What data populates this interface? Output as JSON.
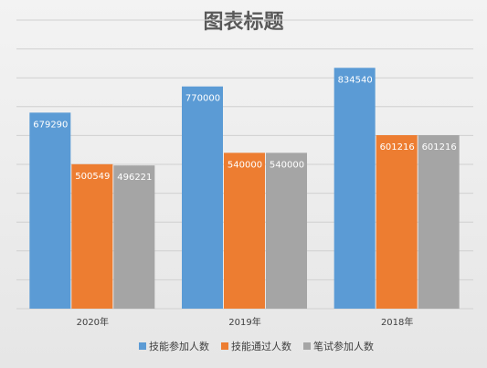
{
  "chart_data": {
    "type": "bar",
    "title": "图表标题",
    "categories": [
      "2020年",
      "2019年",
      "2018年"
    ],
    "series": [
      {
        "name": "技能参加人数",
        "values": [
          679290,
          770000,
          834540
        ],
        "color": "#5b9bd5"
      },
      {
        "name": "技能通过人数",
        "values": [
          500549,
          540000,
          601216
        ],
        "color": "#ed7d31"
      },
      {
        "name": "笔试参加人数",
        "values": [
          496221,
          540000,
          601216
        ],
        "color": "#a5a5a5"
      }
    ],
    "xlabel": "",
    "ylabel": "",
    "ylim": [
      0,
      1000000
    ],
    "grid": true,
    "legend_position": "bottom"
  }
}
